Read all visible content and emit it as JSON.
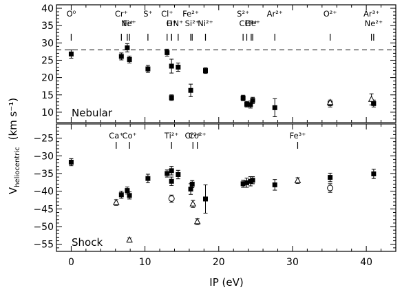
{
  "chart_data": [
    {
      "type": "scatter",
      "panel": "top",
      "panel_label": "Nebular",
      "xlim": [
        -2,
        44
      ],
      "ylim": [
        7,
        41
      ],
      "yticks": [
        10,
        15,
        20,
        25,
        30,
        35,
        40
      ],
      "reference_line": {
        "y": 28,
        "style": "dashed"
      },
      "ion_markers": [
        {
          "label": "O⁰",
          "x": 0
        },
        {
          "label": "Cr⁺",
          "x": 6.8
        },
        {
          "label": "Ni⁺",
          "x": 7.6
        },
        {
          "label": "Fe⁺",
          "x": 7.9
        },
        {
          "label": "S⁺",
          "x": 10.4
        },
        {
          "label": "Cl⁺",
          "x": 13.0
        },
        {
          "label": "O⁺",
          "x": 13.6
        },
        {
          "label": "H⁺",
          "x": 13.6
        },
        {
          "label": "N⁺",
          "x": 14.5
        },
        {
          "label": "Fe²⁺",
          "x": 16.2
        },
        {
          "label": "Si²⁺",
          "x": 16.4
        },
        {
          "label": "Ni²⁺",
          "x": 18.2
        },
        {
          "label": "S²⁺",
          "x": 23.3
        },
        {
          "label": "Cl²⁺",
          "x": 23.8
        },
        {
          "label": "C²⁺",
          "x": 24.4
        },
        {
          "label": "He⁺",
          "x": 24.6
        },
        {
          "label": "Ar²⁺",
          "x": 27.6
        },
        {
          "label": "O²⁺",
          "x": 35.1
        },
        {
          "label": "Ar³⁺",
          "x": 40.7
        },
        {
          "label": "Ne²⁺",
          "x": 41.0
        }
      ],
      "series": [
        {
          "marker": "filled-square",
          "points": [
            {
              "x": 0.0,
              "y": 26.8,
              "err": 1.2
            },
            {
              "x": 6.8,
              "y": 26.1,
              "err": 1.0
            },
            {
              "x": 7.6,
              "y": 28.6,
              "err": 1.2
            },
            {
              "x": 7.9,
              "y": 25.2,
              "err": 1.0
            },
            {
              "x": 10.4,
              "y": 22.5,
              "err": 1.0
            },
            {
              "x": 13.0,
              "y": 27.2,
              "err": 1.0
            },
            {
              "x": 13.6,
              "y": 23.3,
              "err": 2.0
            },
            {
              "x": 13.6,
              "y": 14.2,
              "err": 0.8
            },
            {
              "x": 14.5,
              "y": 23.0,
              "err": 1.2
            },
            {
              "x": 16.2,
              "y": 16.3,
              "err": 1.8
            },
            {
              "x": 18.2,
              "y": 22.0,
              "err": 0.8
            },
            {
              "x": 23.3,
              "y": 14.1,
              "err": 0.8
            },
            {
              "x": 23.8,
              "y": 12.3,
              "err": 0.8
            },
            {
              "x": 24.3,
              "y": 12.2,
              "err": 1.0
            },
            {
              "x": 24.6,
              "y": 13.4,
              "err": 0.9
            },
            {
              "x": 27.6,
              "y": 11.3,
              "err": 2.6
            },
            {
              "x": 35.1,
              "y": 12.5,
              "err": 1.0
            },
            {
              "x": 41.0,
              "y": 12.5,
              "err": 1.0
            }
          ]
        },
        {
          "marker": "open-triangle",
          "points": [
            {
              "x": 35.1,
              "y": 12.8,
              "err": 0.0
            },
            {
              "x": 40.7,
              "y": 13.7,
              "err": 1.6
            }
          ]
        }
      ]
    },
    {
      "type": "scatter",
      "panel": "bottom",
      "panel_label": "Shock",
      "xlim": [
        -2,
        44
      ],
      "ylim": [
        -57,
        -21
      ],
      "yticks": [
        -55,
        -50,
        -45,
        -40,
        -35,
        -30,
        -25
      ],
      "ion_markers": [
        {
          "label": "Ca⁺",
          "x": 6.1
        },
        {
          "label": "Co⁺",
          "x": 7.9
        },
        {
          "label": "Ti²⁺",
          "x": 13.6
        },
        {
          "label": "Cr²⁺",
          "x": 16.5
        },
        {
          "label": "Co²⁺",
          "x": 17.1
        },
        {
          "label": "Fe³⁺",
          "x": 30.7
        }
      ],
      "series": [
        {
          "marker": "filled-square",
          "points": [
            {
              "x": 0.0,
              "y": -31.8,
              "err": 1.0
            },
            {
              "x": 6.8,
              "y": -41.0,
              "err": 1.0
            },
            {
              "x": 7.6,
              "y": -39.8,
              "err": 1.0
            },
            {
              "x": 7.9,
              "y": -41.2,
              "err": 1.0
            },
            {
              "x": 10.4,
              "y": -36.4,
              "err": 1.2
            },
            {
              "x": 13.0,
              "y": -35.0,
              "err": 1.0
            },
            {
              "x": 13.6,
              "y": -34.2,
              "err": 1.2
            },
            {
              "x": 13.6,
              "y": -37.2,
              "err": 1.2
            },
            {
              "x": 14.5,
              "y": -35.3,
              "err": 1.2
            },
            {
              "x": 16.2,
              "y": -39.4,
              "err": 1.5
            },
            {
              "x": 16.4,
              "y": -38.0,
              "err": 1.0
            },
            {
              "x": 18.2,
              "y": -42.2,
              "err": 4.0
            },
            {
              "x": 23.3,
              "y": -37.9,
              "err": 1.0
            },
            {
              "x": 23.8,
              "y": -37.6,
              "err": 1.3
            },
            {
              "x": 24.3,
              "y": -37.2,
              "err": 1.3
            },
            {
              "x": 24.6,
              "y": -36.9,
              "err": 1.0
            },
            {
              "x": 27.6,
              "y": -38.2,
              "err": 1.5
            },
            {
              "x": 35.1,
              "y": -36.1,
              "err": 1.2
            },
            {
              "x": 41.0,
              "y": -35.1,
              "err": 1.3
            }
          ]
        },
        {
          "marker": "open-triangle",
          "points": [
            {
              "x": 6.1,
              "y": -43.2,
              "err": 0.8
            },
            {
              "x": 7.9,
              "y": -53.8,
              "err": 0.6
            },
            {
              "x": 16.5,
              "y": -43.6,
              "err": 1.0
            },
            {
              "x": 17.1,
              "y": -48.6,
              "err": 0.8
            },
            {
              "x": 30.7,
              "y": -37.0,
              "err": 0.8
            }
          ]
        },
        {
          "marker": "open-circle",
          "points": [
            {
              "x": 13.6,
              "y": -42.1,
              "err": 1.0
            },
            {
              "x": 35.1,
              "y": -39.1,
              "err": 1.2
            }
          ]
        }
      ]
    }
  ],
  "axes": {
    "xlabel": "IP (eV)",
    "ylabel_main": "V",
    "ylabel_sub": "heliocentric",
    "ylabel_units": "(km s⁻¹)",
    "xticks": [
      0,
      10,
      20,
      30,
      40
    ]
  }
}
